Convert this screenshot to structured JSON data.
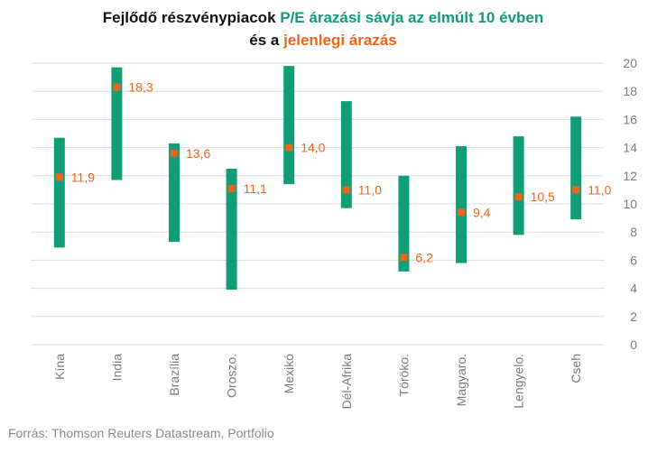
{
  "title": {
    "line1_part1": "Fejlődő részvénypiacok ",
    "line1_part2": "P/E árazási sávja az  elmúlt 10 évben",
    "line2_part1": "és a ",
    "line2_part2": "jelenlegi árazás"
  },
  "colors": {
    "range": "#0f9e78",
    "current": "#f06418",
    "title_dark": "#111111",
    "grid": "#dedede"
  },
  "source": "Forrás: Thomson Reuters Datastream, Portfolio",
  "chart_data": {
    "type": "range_bar",
    "title": "Fejlődő részvénypiacok P/E árazási sávja az elmúlt 10 évben és a jelenlegi árazás",
    "categories": [
      "Kína",
      "India",
      "Brazília",
      "Oroszo.",
      "Mexikó",
      "Dél-Afrika",
      "Törökо.",
      "Magyaro.",
      "Lengyelo.",
      "Cseh"
    ],
    "series": [
      {
        "name": "P/E árazási sávja az elmúlt 10 évben",
        "low": [
          6.9,
          11.7,
          7.3,
          3.9,
          11.4,
          9.7,
          5.2,
          5.8,
          7.8,
          8.9
        ],
        "high": [
          14.7,
          19.7,
          14.3,
          12.5,
          19.8,
          17.3,
          12.0,
          14.1,
          14.8,
          16.2
        ]
      },
      {
        "name": "jelenlegi árazás",
        "values": [
          11.9,
          18.3,
          13.6,
          11.1,
          14.0,
          11.0,
          6.2,
          9.4,
          10.5,
          11.0
        ],
        "labels": [
          "11,9",
          "18,3",
          "13,6",
          "11,1",
          "14,0",
          "11,0",
          "6,2",
          "9,4",
          "10,5",
          "11,0"
        ]
      }
    ],
    "yaxis": {
      "position": "right",
      "ylim": [
        0,
        20
      ],
      "ticks": [
        "0",
        "2",
        "4",
        "6",
        "8",
        "10",
        "12",
        "14",
        "16",
        "18",
        "20"
      ]
    },
    "grid": true,
    "legend": "none"
  }
}
